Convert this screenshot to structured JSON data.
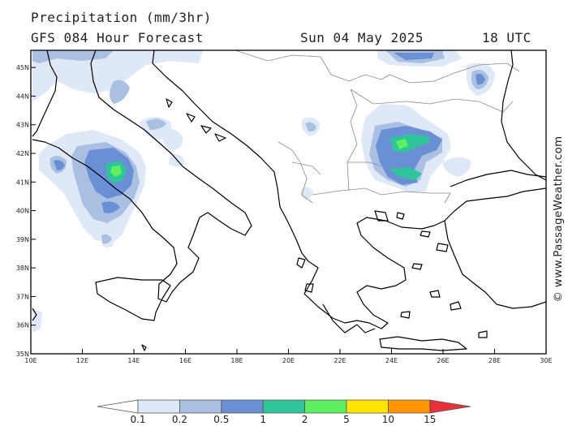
{
  "header": {
    "title": "Precipitation (mm/3hr)",
    "subtitle": "GFS 084 Hour Forecast",
    "date": "Sun 04 May 2025",
    "time": "18 UTC"
  },
  "watermark": "© www.PassageWeather.com",
  "map": {
    "lon_range": [
      10,
      30
    ],
    "lat_range": [
      35,
      45.6
    ],
    "lon_ticks": [
      {
        "lon": 10,
        "label": "10E"
      },
      {
        "lon": 12,
        "label": "12E"
      },
      {
        "lon": 14,
        "label": "14E"
      },
      {
        "lon": 16,
        "label": "16E"
      },
      {
        "lon": 18,
        "label": "18E"
      },
      {
        "lon": 20,
        "label": "20E"
      },
      {
        "lon": 22,
        "label": "22E"
      },
      {
        "lon": 24,
        "label": "24E"
      },
      {
        "lon": 26,
        "label": "26E"
      },
      {
        "lon": 28,
        "label": "28E"
      },
      {
        "lon": 30,
        "label": "30E"
      }
    ],
    "lat_ticks": [
      {
        "lat": 35,
        "label": "35N"
      },
      {
        "lat": 36,
        "label": "36N"
      },
      {
        "lat": 37,
        "label": "37N"
      },
      {
        "lat": 38,
        "label": "38N"
      },
      {
        "lat": 39,
        "label": "39N"
      },
      {
        "lat": 40,
        "label": "40N"
      },
      {
        "lat": 41,
        "label": "41N"
      },
      {
        "lat": 42,
        "label": "42N"
      },
      {
        "lat": 43,
        "label": "43N"
      },
      {
        "lat": 44,
        "label": "44N"
      },
      {
        "lat": 45,
        "label": "45N"
      }
    ]
  },
  "colorbar": {
    "labels": [
      "0.1",
      "0.2",
      "0.5",
      "1",
      "2",
      "5",
      "10",
      "15"
    ],
    "colors": [
      "#ffffff",
      "#dfe8f6",
      "#a9c0e2",
      "#6a8fd5",
      "#2fc49a",
      "#5ef05e",
      "#ffe600",
      "#ff9600",
      "#e8303a"
    ]
  }
}
